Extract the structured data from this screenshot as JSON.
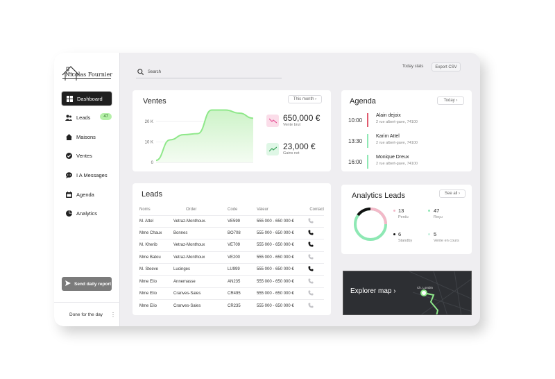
{
  "sidebar": {
    "logo_text": "Nicolas Fournier",
    "items": [
      {
        "label": "Dashboard",
        "icon": "grid-icon",
        "active": true
      },
      {
        "label": "Leads",
        "icon": "users-icon",
        "badge": "47"
      },
      {
        "label": "Maisons",
        "icon": "home-icon"
      },
      {
        "label": "Ventes",
        "icon": "check-circle-icon"
      },
      {
        "label": "I A Messages",
        "icon": "chat-icon"
      },
      {
        "label": "Agenda",
        "icon": "calendar-icon"
      },
      {
        "label": "Analytics",
        "icon": "pie-chart-icon"
      }
    ],
    "send_report": "Send daily report",
    "done": "Done for the day"
  },
  "header": {
    "search_placeholder": "Search",
    "today_stats": "Today stats",
    "export": "Export CSV"
  },
  "ventes": {
    "title": "Ventes",
    "filter": "This month",
    "metric1_value": "650,000 €",
    "metric1_label": "Vente brut",
    "metric2_value": "23,000 €",
    "metric2_label": "Gains net",
    "colors": {
      "line": "#8fe88a",
      "fill": "#e3f8df",
      "down": "#e8589a",
      "down_bg": "#fbdde9",
      "up_bg": "#dff7e6"
    }
  },
  "chart_data": {
    "type": "area",
    "title": "",
    "xlabel": "",
    "ylabel": "",
    "y_ticks": [
      "0",
      "10 K",
      "20 K"
    ],
    "ylim": [
      0,
      25000
    ],
    "x": [
      0,
      1,
      2,
      3,
      4,
      5,
      6,
      7
    ],
    "values": [
      1000,
      11000,
      13500,
      14000,
      25500,
      25500,
      24000,
      21500
    ]
  },
  "agenda": {
    "title": "Agenda",
    "filter": "Today",
    "items": [
      {
        "time": "10:00",
        "name": "Alain dejoix",
        "address": "2 rue albert-gave, 74100",
        "color": "#e05a6e"
      },
      {
        "time": "13:30",
        "name": "Karim Attel",
        "address": "2 rue albert-gave, 74100",
        "color": "#8ee8b4"
      },
      {
        "time": "16:00",
        "name": "Monique Dreux",
        "address": "2 rue albert-gave, 74100",
        "color": "#8ee8b4"
      }
    ]
  },
  "leads": {
    "title": "Leads",
    "columns": [
      "Noms",
      "Order",
      "Code",
      "Valeur",
      "Contact"
    ],
    "rows": [
      {
        "name": "M. Attel",
        "order": "Vetraz-Monthoux.",
        "code": "VE599",
        "value": "555 000 - 650 000 €",
        "phone_active": false
      },
      {
        "name": "Mme Chaux",
        "order": "Bonnes",
        "code": "BO708",
        "value": "555 000 - 650 000 €",
        "phone_active": true
      },
      {
        "name": "M. Kherib",
        "order": "Vetraz-Monthoux",
        "code": "VE709",
        "value": "555 000 - 650 000 €",
        "phone_active": true
      },
      {
        "name": "Mme Batou",
        "order": "Vetraz-Monthoux",
        "code": "VE200",
        "value": "555 000 - 650 000 €",
        "phone_active": false
      },
      {
        "name": "M. Steeve",
        "order": "Lucinges",
        "code": "LU999",
        "value": "555 000 - 650 000 €",
        "phone_active": true
      },
      {
        "name": "Mme Elio",
        "order": "Annemasse",
        "code": "AN235",
        "value": "555 000 - 650 000 €",
        "phone_active": false
      },
      {
        "name": "Mme Elio",
        "order": "Cranves-Sales",
        "code": "CR495",
        "value": "555 000 - 650 000 €",
        "phone_active": false
      },
      {
        "name": "Mme Elio",
        "order": "Cranves-Sales",
        "code": "CR235",
        "value": "555 000 - 650 000 €",
        "phone_active": false
      }
    ]
  },
  "analytics": {
    "title": "Analytics Leads",
    "see_all": "See all",
    "stats": [
      {
        "value": "13",
        "label": "Perdu",
        "color": "#f3b8c8"
      },
      {
        "value": "47",
        "label": "Reçu",
        "color": "#8ee8b4"
      },
      {
        "value": "6",
        "label": "Standby",
        "color": "#111111"
      },
      {
        "value": "5",
        "label": "Vente en cours",
        "color": "#c9f0e0"
      }
    ]
  },
  "map": {
    "label": "Explorer map",
    "place": "Ch. Lombin"
  }
}
